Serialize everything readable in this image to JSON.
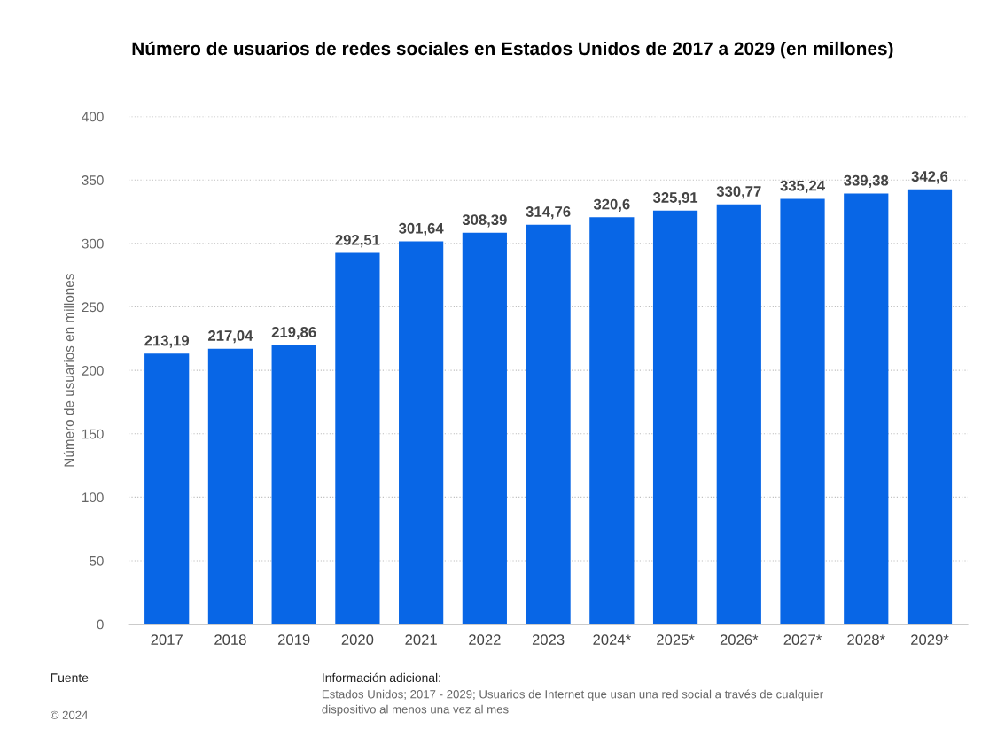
{
  "chart_data": {
    "type": "bar",
    "title": "Número de usuarios de redes sociales en Estados Unidos de 2017 a 2029 (en millones)",
    "ylabel": "Número de usuarios en millones",
    "categories": [
      "2017",
      "2018",
      "2019",
      "2020",
      "2021",
      "2022",
      "2023",
      "2024*",
      "2025*",
      "2026*",
      "2027*",
      "2028*",
      "2029*"
    ],
    "values": [
      213.19,
      217.04,
      219.86,
      292.51,
      301.64,
      308.39,
      314.76,
      320.6,
      325.91,
      330.77,
      335.24,
      339.38,
      342.6
    ],
    "value_labels": [
      "213,19",
      "217,04",
      "219,86",
      "292,51",
      "301,64",
      "308,39",
      "314,76",
      "320,6",
      "325,91",
      "330,77",
      "335,24",
      "339,38",
      "342,6"
    ],
    "color": "#0866e6",
    "ylim": [
      0,
      400
    ],
    "yticks": [
      0,
      50,
      100,
      150,
      200,
      250,
      300,
      350,
      400
    ],
    "grid": "y",
    "legend": false,
    "annotations": [
      "Fuente",
      "© 2024",
      "Información adicional:",
      "Estados Unidos; 2017 - 2029; Usuarios de Internet que usan una red social a través de cualquier dispositivo al menos una vez al mes"
    ]
  }
}
